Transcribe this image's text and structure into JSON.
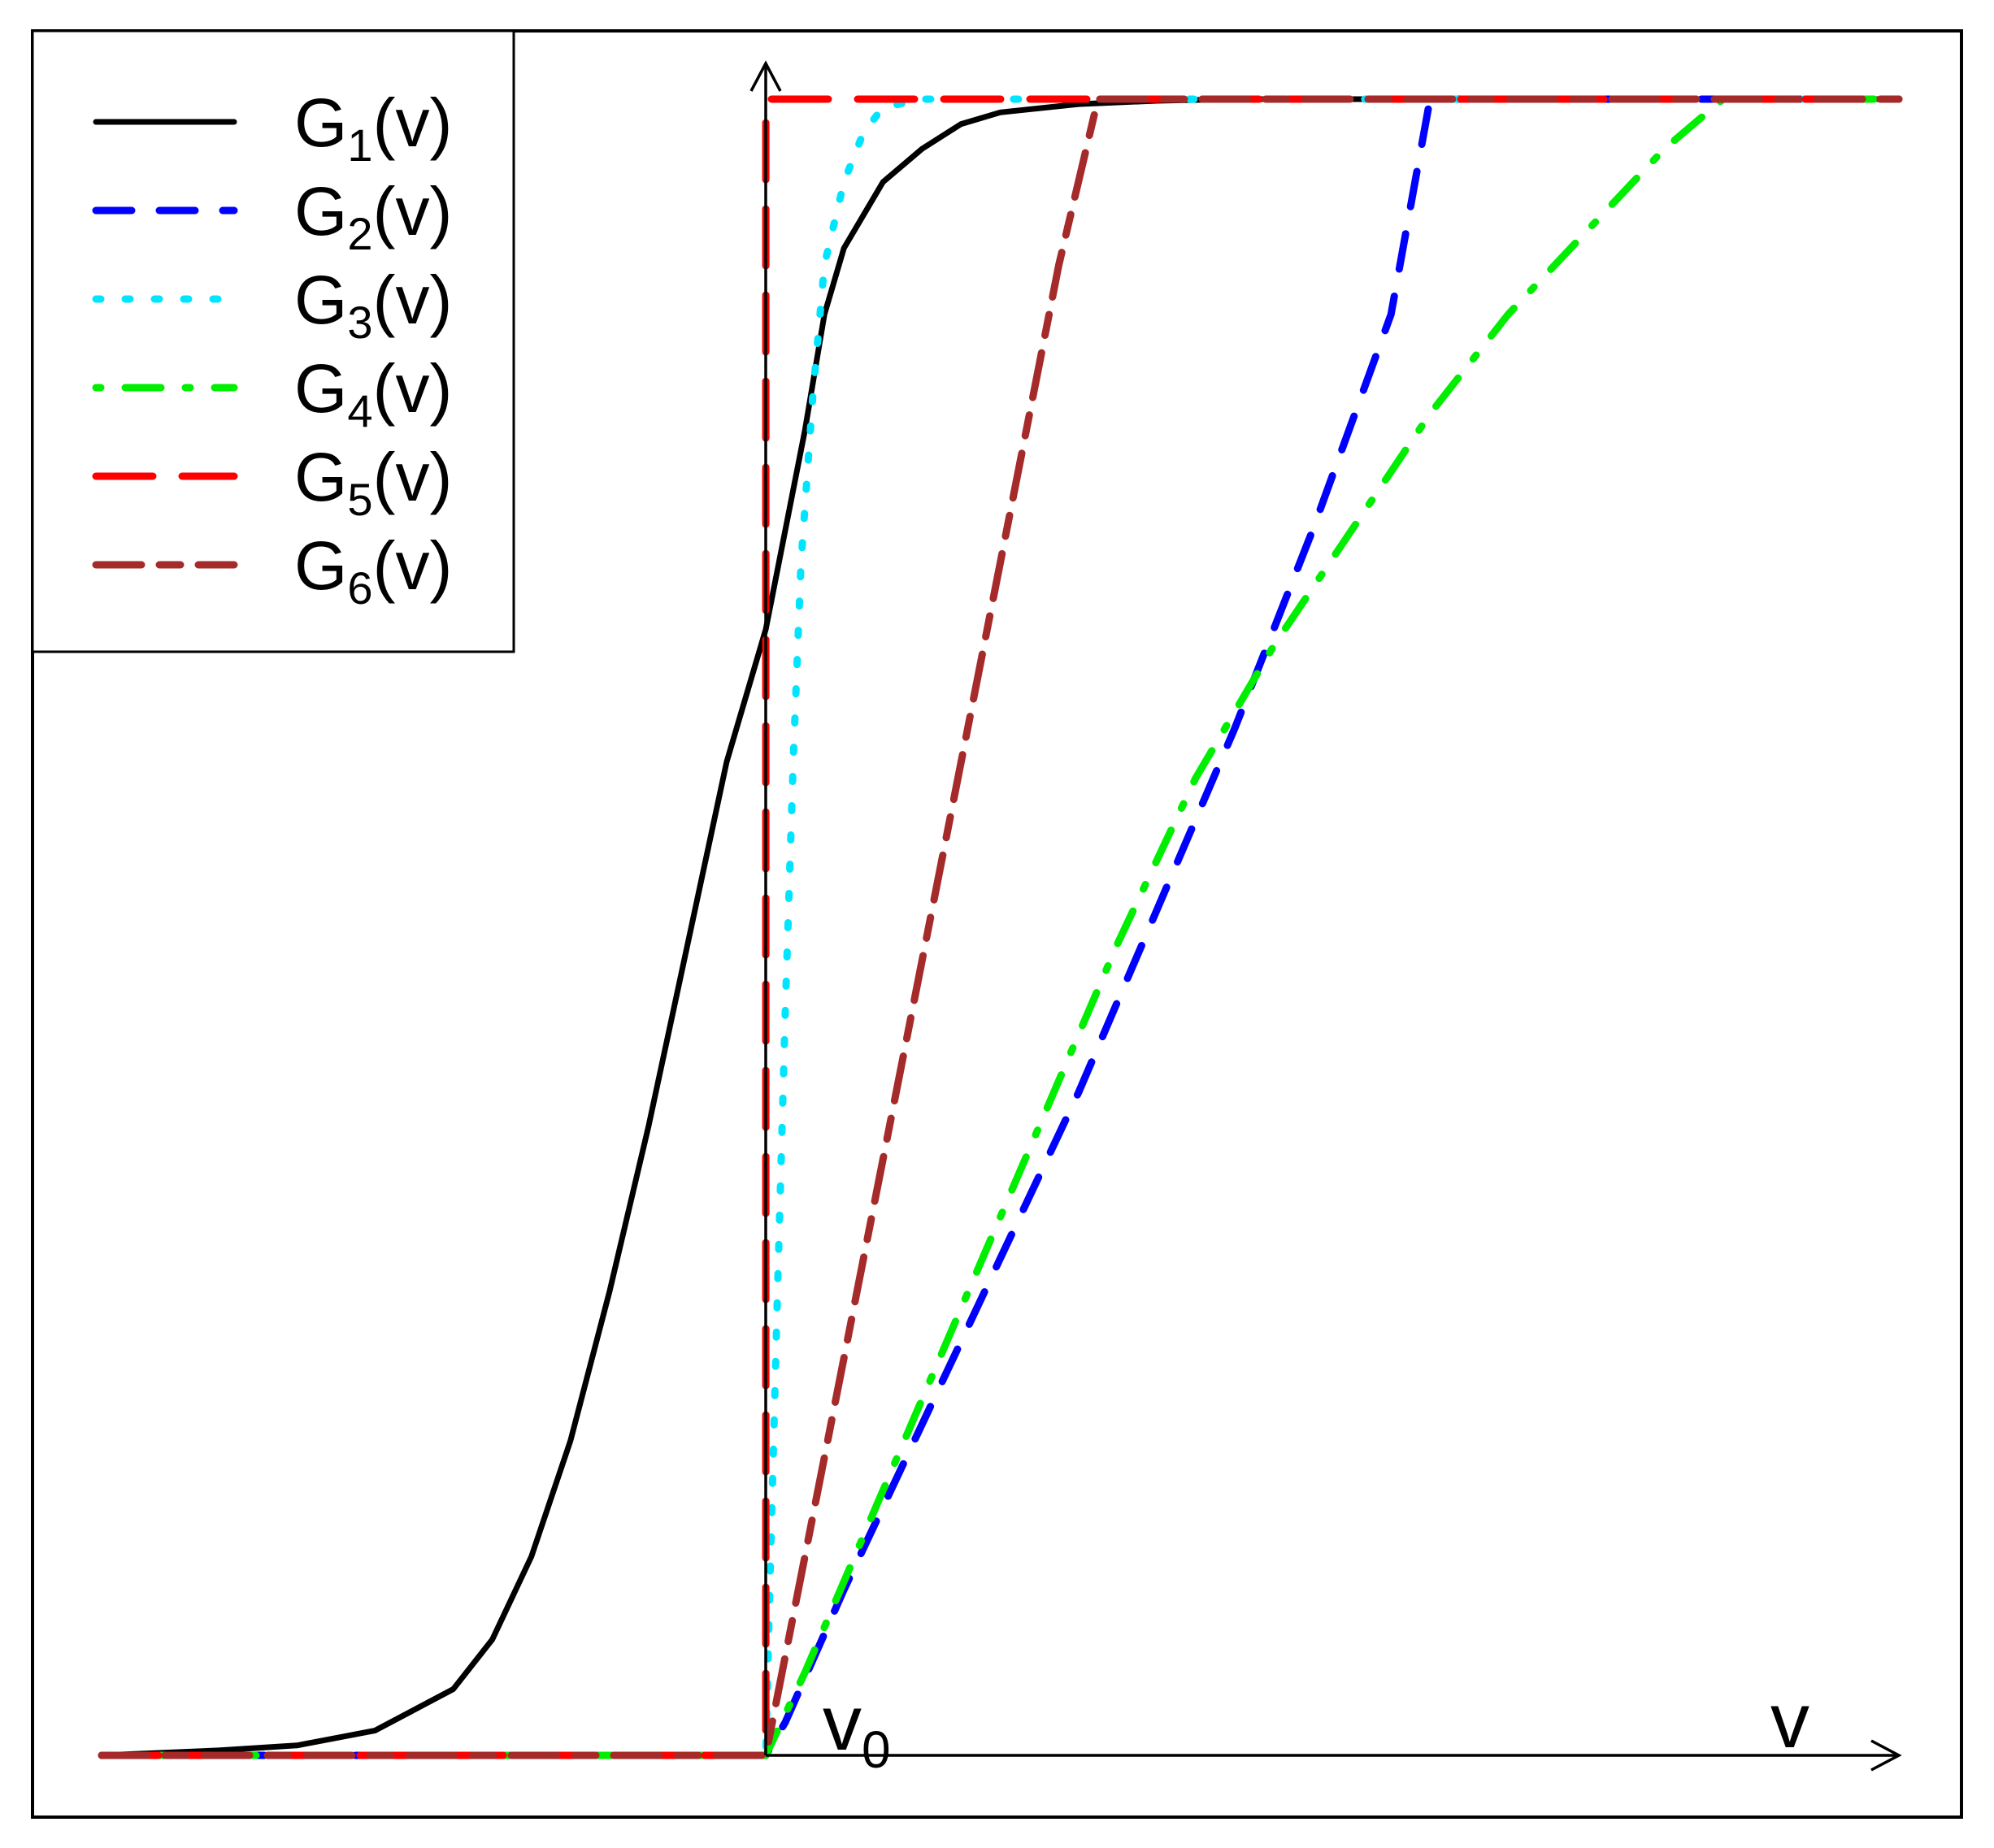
{
  "chart_data": {
    "type": "line",
    "x_domain": [
      -1.7,
      2.9
    ],
    "y_domain": [
      0,
      1
    ],
    "v0_label": {
      "main": "v",
      "sub": "0"
    },
    "x_axis_label": "v",
    "colors": {
      "axis": "#000000",
      "frame": "#000000",
      "background": "#ffffff"
    },
    "legend_position": "top-left",
    "series": [
      {
        "name": "G1(v)",
        "legend_main": "G",
        "legend_sub": "1",
        "legend_tail": "(v)",
        "color": "#000000",
        "dash": "solid",
        "x": [
          -1.7,
          -1.4,
          -1.2,
          -1.0,
          -0.8,
          -0.7,
          -0.6,
          -0.5,
          -0.4,
          -0.3,
          -0.2,
          -0.1,
          0.0,
          0.1,
          0.15,
          0.2,
          0.3,
          0.4,
          0.5,
          0.6,
          0.8,
          1.0,
          1.2,
          2.9
        ],
        "y": [
          0.0,
          0.003,
          0.006,
          0.015,
          0.04,
          0.07,
          0.12,
          0.19,
          0.28,
          0.38,
          0.49,
          0.6,
          0.68,
          0.8,
          0.87,
          0.91,
          0.95,
          0.97,
          0.985,
          0.992,
          0.997,
          0.999,
          1.0,
          1.0
        ]
      },
      {
        "name": "G2(v)",
        "legend_main": "G",
        "legend_sub": "2",
        "legend_tail": "(v)",
        "color": "#0000ff",
        "dash": "dashed",
        "x": [
          -1.7,
          0.0,
          0.05,
          0.2,
          0.4,
          0.6,
          0.8,
          1.0,
          1.2,
          1.4,
          1.6,
          1.7,
          2.9
        ],
        "y": [
          0.0,
          0.0,
          0.02,
          0.1,
          0.2,
          0.3,
          0.4,
          0.51,
          0.62,
          0.74,
          0.87,
          1.0,
          1.0
        ]
      },
      {
        "name": "G3(v)",
        "legend_main": "G",
        "legend_sub": "3",
        "legend_tail": "(v)",
        "color": "#00e5ff",
        "dash": "dotted",
        "x": [
          -1.7,
          0.0,
          0.01,
          0.03,
          0.05,
          0.07,
          0.09,
          0.12,
          0.15,
          0.2,
          0.25,
          0.3,
          0.4,
          2.9
        ],
        "y": [
          0.0,
          0.0,
          0.1,
          0.28,
          0.45,
          0.6,
          0.72,
          0.82,
          0.9,
          0.95,
          0.98,
          0.995,
          1.0,
          1.0
        ]
      },
      {
        "name": "G4(v)",
        "legend_main": "G",
        "legend_sub": "4",
        "legend_tail": "(v)",
        "color": "#00ee00",
        "dash": "dot-dash",
        "x": [
          -1.7,
          0.0,
          0.1,
          0.3,
          0.5,
          0.7,
          0.9,
          1.1,
          1.3,
          1.5,
          1.7,
          1.9,
          2.1,
          2.3,
          2.45,
          2.9
        ],
        "y": [
          0.0,
          0.0,
          0.05,
          0.16,
          0.27,
          0.38,
          0.49,
          0.59,
          0.67,
          0.74,
          0.81,
          0.87,
          0.92,
          0.97,
          1.0,
          1.0
        ]
      },
      {
        "name": "G5(v)",
        "legend_main": "G",
        "legend_sub": "5",
        "legend_tail": "(v)",
        "color": "#ff0000",
        "dash": "long-dashed",
        "x": [
          -1.7,
          0.0,
          0.0,
          2.9
        ],
        "y": [
          0.0,
          0.0,
          1.0,
          1.0
        ]
      },
      {
        "name": "G6(v)",
        "legend_main": "G",
        "legend_sub": "6",
        "legend_tail": "(v)",
        "color": "#a52a2a",
        "dash": "two-dash",
        "x": [
          -1.7,
          0.0,
          0.05,
          0.15,
          0.3,
          0.45,
          0.6,
          0.75,
          0.85,
          2.9
        ],
        "y": [
          0.0,
          0.0,
          0.06,
          0.18,
          0.36,
          0.54,
          0.72,
          0.9,
          1.0,
          1.0
        ]
      }
    ]
  }
}
